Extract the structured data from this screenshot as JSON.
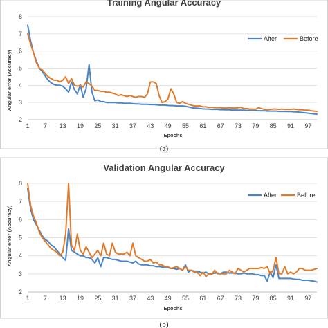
{
  "chart_data": [
    {
      "type": "line",
      "title": "Training Angular Accuracy",
      "xlabel": "Epochs",
      "ylabel": "Angular error (Accuracy)",
      "ylim": [
        2,
        8
      ],
      "yticks": [
        "2",
        "3",
        "4",
        "5",
        "6",
        "7",
        "8"
      ],
      "xtick_labels": [
        "1",
        "7",
        "13",
        "19",
        "25",
        "31",
        "37",
        "43",
        "49",
        "55",
        "61",
        "67",
        "73",
        "79",
        "85",
        "91",
        "97"
      ],
      "xtick_values": [
        1,
        7,
        13,
        19,
        25,
        31,
        37,
        43,
        49,
        55,
        61,
        67,
        73,
        79,
        85,
        91,
        97
      ],
      "xrange": [
        1,
        100
      ],
      "legend_position": "top-right",
      "colors": [
        "#4a86c5",
        "#e07b2c"
      ],
      "x": [
        1,
        2,
        3,
        4,
        5,
        6,
        7,
        8,
        9,
        10,
        11,
        12,
        13,
        14,
        15,
        16,
        17,
        18,
        19,
        20,
        21,
        22,
        23,
        24,
        25,
        26,
        27,
        28,
        29,
        30,
        31,
        32,
        33,
        34,
        35,
        36,
        37,
        38,
        39,
        40,
        41,
        42,
        43,
        44,
        45,
        46,
        47,
        48,
        49,
        50,
        51,
        52,
        53,
        54,
        55,
        56,
        57,
        58,
        59,
        60,
        61,
        62,
        63,
        64,
        65,
        66,
        67,
        68,
        69,
        70,
        71,
        72,
        73,
        74,
        75,
        76,
        77,
        78,
        79,
        80,
        81,
        82,
        83,
        84,
        85,
        86,
        87,
        88,
        89,
        90,
        91,
        92,
        93,
        94,
        95,
        96,
        97,
        98,
        99,
        100
      ],
      "series": [
        {
          "name": "After",
          "values": [
            7.5,
            6.6,
            5.9,
            5.4,
            5.0,
            4.8,
            4.55,
            4.3,
            4.15,
            4.05,
            4.0,
            4.0,
            3.95,
            3.8,
            3.6,
            4.2,
            3.75,
            3.5,
            4.05,
            3.3,
            3.8,
            5.2,
            3.6,
            3.1,
            3.15,
            3.05,
            3.05,
            3.0,
            3.0,
            3.0,
            3.0,
            2.98,
            2.98,
            2.95,
            2.95,
            2.95,
            2.93,
            2.92,
            2.92,
            2.9,
            2.9,
            2.9,
            2.88,
            2.88,
            2.87,
            2.85,
            2.85,
            2.85,
            2.83,
            2.82,
            2.82,
            2.8,
            2.8,
            2.8,
            2.78,
            2.75,
            2.7,
            2.68,
            2.67,
            2.65,
            2.63,
            2.62,
            2.62,
            2.6,
            2.6,
            2.6,
            2.58,
            2.58,
            2.57,
            2.57,
            2.56,
            2.56,
            2.55,
            2.55,
            2.55,
            2.54,
            2.54,
            2.53,
            2.53,
            2.52,
            2.52,
            2.52,
            2.5,
            2.5,
            2.5,
            2.5,
            2.48,
            2.48,
            2.48,
            2.47,
            2.47,
            2.46,
            2.45,
            2.43,
            2.42,
            2.4,
            2.38,
            2.36,
            2.34,
            2.32
          ]
        },
        {
          "name": "Before",
          "values": [
            7.0,
            6.4,
            5.9,
            5.3,
            5.0,
            4.9,
            4.7,
            4.5,
            4.4,
            4.3,
            4.3,
            4.2,
            4.3,
            4.5,
            4.1,
            4.4,
            4.0,
            3.95,
            4.0,
            3.9,
            4.2,
            4.1,
            3.95,
            3.7,
            3.7,
            3.65,
            3.65,
            3.6,
            3.6,
            3.55,
            3.5,
            3.4,
            3.45,
            3.4,
            3.35,
            3.4,
            3.35,
            3.3,
            3.35,
            3.35,
            3.3,
            3.5,
            4.2,
            4.2,
            4.1,
            3.4,
            3.0,
            3.05,
            3.2,
            3.8,
            3.5,
            3.0,
            2.95,
            3.05,
            2.95,
            2.9,
            2.85,
            2.8,
            2.8,
            2.8,
            2.75,
            2.75,
            2.72,
            2.72,
            2.7,
            2.7,
            2.7,
            2.68,
            2.68,
            2.7,
            2.68,
            2.68,
            2.7,
            2.72,
            2.65,
            2.65,
            2.62,
            2.62,
            2.6,
            2.7,
            2.65,
            2.6,
            2.58,
            2.6,
            2.62,
            2.62,
            2.6,
            2.62,
            2.6,
            2.6,
            2.6,
            2.62,
            2.6,
            2.58,
            2.58,
            2.55,
            2.55,
            2.52,
            2.5,
            2.48
          ]
        }
      ],
      "caption": "(a)"
    },
    {
      "type": "line",
      "title": "Validation Angular Accuracy",
      "xlabel": "Epochs",
      "ylabel": "Angular error (Accuracy)",
      "ylim": [
        2,
        8
      ],
      "yticks": [
        "2",
        "3",
        "4",
        "5",
        "6",
        "7",
        "8"
      ],
      "xtick_labels": [
        "1",
        "7",
        "13",
        "19",
        "25",
        "31",
        "37",
        "43",
        "49",
        "55",
        "61",
        "67",
        "73",
        "79",
        "85",
        "91",
        "97"
      ],
      "xtick_values": [
        1,
        7,
        13,
        19,
        25,
        31,
        37,
        43,
        49,
        55,
        61,
        67,
        73,
        79,
        85,
        91,
        97
      ],
      "xrange": [
        1,
        100
      ],
      "legend_position": "top-right",
      "colors": [
        "#4a86c5",
        "#e07b2c"
      ],
      "x": [
        1,
        2,
        3,
        4,
        5,
        6,
        7,
        8,
        9,
        10,
        11,
        12,
        13,
        14,
        15,
        16,
        17,
        18,
        19,
        20,
        21,
        22,
        23,
        24,
        25,
        26,
        27,
        28,
        29,
        30,
        31,
        32,
        33,
        34,
        35,
        36,
        37,
        38,
        39,
        40,
        41,
        42,
        43,
        44,
        45,
        46,
        47,
        48,
        49,
        50,
        51,
        52,
        53,
        54,
        55,
        56,
        57,
        58,
        59,
        60,
        61,
        62,
        63,
        64,
        65,
        66,
        67,
        68,
        69,
        70,
        71,
        72,
        73,
        74,
        75,
        76,
        77,
        78,
        79,
        80,
        81,
        82,
        83,
        84,
        85,
        86,
        87,
        88,
        89,
        90,
        91,
        92,
        93,
        94,
        95,
        96,
        97,
        98,
        99,
        100
      ],
      "series": [
        {
          "name": "After",
          "values": [
            7.7,
            6.6,
            6.0,
            5.7,
            5.4,
            5.1,
            4.9,
            4.8,
            4.6,
            4.5,
            4.3,
            4.1,
            3.9,
            3.75,
            5.5,
            4.3,
            4.2,
            4.1,
            4.0,
            4.0,
            3.9,
            3.9,
            3.8,
            3.6,
            3.9,
            3.4,
            3.9,
            3.9,
            3.85,
            3.8,
            3.8,
            3.75,
            3.7,
            3.7,
            3.7,
            3.65,
            3.6,
            3.7,
            3.55,
            3.5,
            3.5,
            3.5,
            3.45,
            3.45,
            3.4,
            3.4,
            3.38,
            3.35,
            3.35,
            3.3,
            3.3,
            3.25,
            3.3,
            3.2,
            3.5,
            3.1,
            3.2,
            3.15,
            3.15,
            3.1,
            3.05,
            3.1,
            3.0,
            3.0,
            3.05,
            3.05,
            3.0,
            3.1,
            3.1,
            3.05,
            3.05,
            3.05,
            3.0,
            3.0,
            3.05,
            3.0,
            3.0,
            3.0,
            2.95,
            2.95,
            2.9,
            2.9,
            2.6,
            3.1,
            2.8,
            3.5,
            2.75,
            2.75,
            2.75,
            2.75,
            2.75,
            2.72,
            2.7,
            2.7,
            2.65,
            2.65,
            2.65,
            2.62,
            2.6,
            2.55
          ]
        },
        {
          "name": "Before",
          "values": [
            8.0,
            6.8,
            6.2,
            5.8,
            5.3,
            5.0,
            4.8,
            4.6,
            4.4,
            4.3,
            4.2,
            4.0,
            4.2,
            5.2,
            8.0,
            4.6,
            4.3,
            5.2,
            4.3,
            4.1,
            4.5,
            4.2,
            3.9,
            4.1,
            4.3,
            4.0,
            4.7,
            4.1,
            4.0,
            4.7,
            4.2,
            4.1,
            4.1,
            4.1,
            4.2,
            4.0,
            4.7,
            4.0,
            3.9,
            3.8,
            3.7,
            3.7,
            3.8,
            3.6,
            3.65,
            3.5,
            3.5,
            3.4,
            3.4,
            3.3,
            3.35,
            3.4,
            3.3,
            3.2,
            3.4,
            3.2,
            3.2,
            3.1,
            3.1,
            2.9,
            3.1,
            2.85,
            3.0,
            2.95,
            3.2,
            3.0,
            3.0,
            3.0,
            3.0,
            3.2,
            3.1,
            3.0,
            3.3,
            3.2,
            3.1,
            3.2,
            3.3,
            3.3,
            3.3,
            3.3,
            3.35,
            3.3,
            3.4,
            3.0,
            3.2,
            3.9,
            3.0,
            3.0,
            3.4,
            3.0,
            3.1,
            3.0,
            3.1,
            3.3,
            3.3,
            3.2,
            3.2,
            3.2,
            3.25,
            3.3
          ]
        }
      ],
      "caption": "(b)"
    }
  ]
}
